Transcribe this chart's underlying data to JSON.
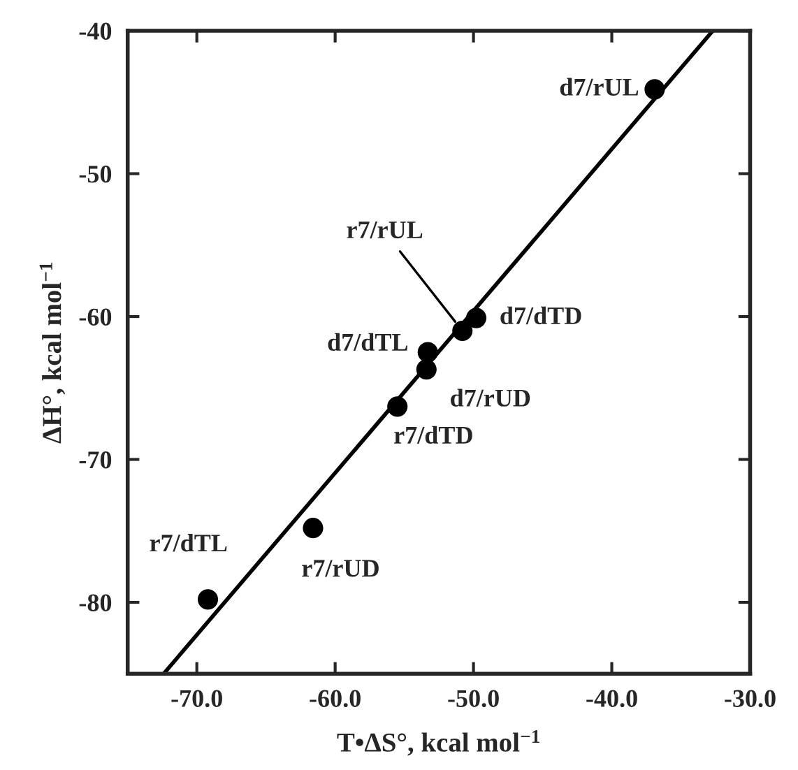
{
  "chart_data": {
    "type": "scatter",
    "xlabel": "T•ΔS°, kcal mol$^{−1}$",
    "ylabel": "ΔH°, kcal mol$^{−1}$",
    "x": [
      -36.9,
      -50.8,
      -49.8,
      -53.3,
      -53.4,
      -55.5,
      -61.6,
      -69.2
    ],
    "series": [
      {
        "color": "#000000",
        "marker": "circle",
        "values": [
          -44.1,
          -61.0,
          -60.1,
          -62.5,
          -63.7,
          -66.3,
          -74.8,
          -79.8
        ]
      },
      {
        "type": "line",
        "color": "#000000",
        "line_style": "solid",
        "marker": "none",
        "x": [
          -72.4,
          -32.7
        ],
        "values": [
          -85,
          -40
        ]
      }
    ],
    "annotations": [
      {
        "text": "d7/rUL",
        "x": -36.9,
        "y": -44.1
      },
      {
        "text": "r7/rUL",
        "x": -50.8,
        "y": -61.0
      },
      {
        "text": "d7/dTD",
        "x": -49.8,
        "y": -60.1
      },
      {
        "text": "d7/dTL",
        "x": -53.3,
        "y": -62.5
      },
      {
        "text": "d7/rUD",
        "x": -53.4,
        "y": -63.7
      },
      {
        "text": "r7/dTD",
        "x": -55.5,
        "y": -66.3
      },
      {
        "text": "r7/rUD",
        "x": -61.6,
        "y": -74.8
      },
      {
        "text": "r7/dTL",
        "x": -69.2,
        "y": -79.8
      }
    ],
    "xlim": [
      -75,
      -30
    ],
    "ylim": [
      -85,
      -40
    ],
    "xticks": [
      {
        "value": -70,
        "label": "-70.0"
      },
      {
        "value": -60,
        "label": "-60.0"
      },
      {
        "value": -50,
        "label": "-50.0"
      },
      {
        "value": -40,
        "label": "-40.0"
      },
      {
        "value": -30,
        "label": "-30.0"
      }
    ],
    "yticks": [
      -80,
      -70,
      -60,
      -50,
      -40
    ],
    "grid": false,
    "legend": false
  }
}
